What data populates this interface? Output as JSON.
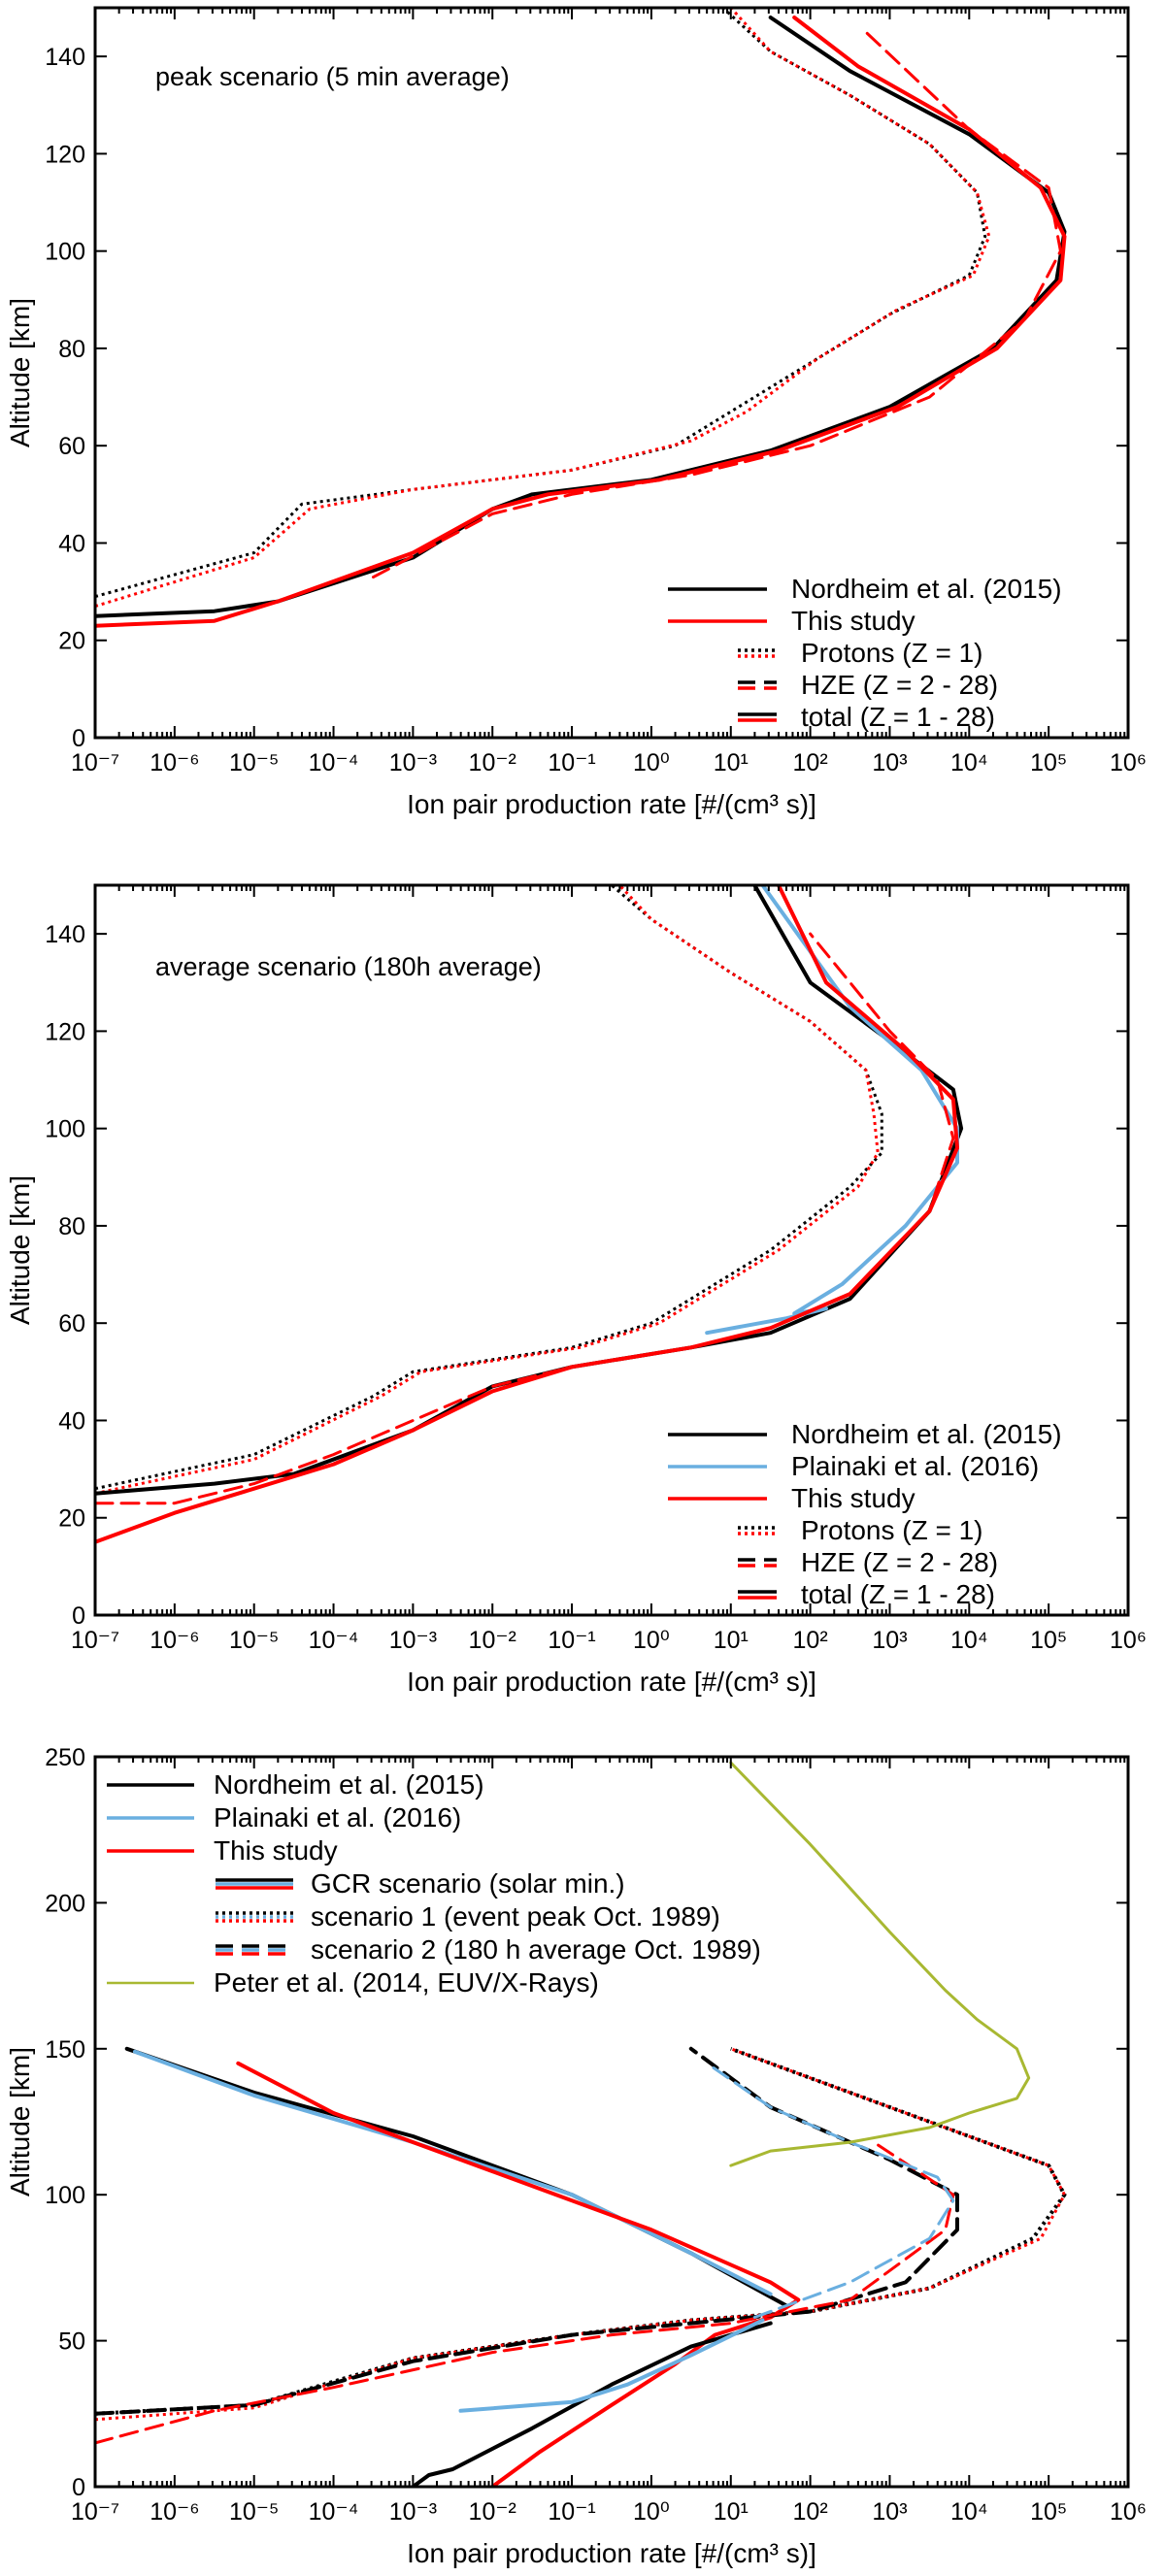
{
  "colors": {
    "nordheim": "#000000",
    "plainaki": "#6aafe0",
    "this_study": "#ff0000",
    "peter": "#a8b832"
  },
  "chart_data": [
    {
      "type": "line",
      "title": "",
      "annotation": "peak scenario (5 min average)",
      "xlabel": "Ion pair production rate [#/(cm³ s)]",
      "ylabel": "Altitude [km]",
      "xscale": "log",
      "xlim": [
        -7,
        6
      ],
      "ylim": [
        0,
        150
      ],
      "xticks": [
        "10⁻⁷",
        "10⁻⁶",
        "10⁻⁵",
        "10⁻⁴",
        "10⁻³",
        "10⁻²",
        "10⁻¹",
        "10⁰",
        "10¹",
        "10²",
        "10³",
        "10⁴",
        "10⁵",
        "10⁶"
      ],
      "yticks": [
        "0",
        "20",
        "40",
        "60",
        "80",
        "100",
        "120",
        "140"
      ],
      "legend_position": "lower-right",
      "legend": [
        {
          "label": "Nordheim et al. (2015)",
          "style": "solid",
          "color": "nordheim"
        },
        {
          "label": "This study",
          "style": "solid",
          "color": "this_study"
        },
        {
          "label": "Protons (Z = 1)",
          "style": "dotted",
          "color": "both"
        },
        {
          "label": "HZE (Z = 2 - 28)",
          "style": "dashed",
          "color": "both"
        },
        {
          "label": "total (Z = 1 - 28)",
          "style": "solid",
          "color": "both"
        }
      ],
      "series": [
        {
          "name": "Nordheim protons",
          "color": "nordheim",
          "style": "dotted",
          "width": 3,
          "log10x": [
            -7,
            -5,
            -4.4,
            -3,
            -1,
            0.3,
            1,
            2,
            3,
            4,
            4.2,
            4.1,
            3.5,
            2.5,
            1.5,
            0.9
          ],
          "y": [
            29,
            38,
            48,
            51,
            55,
            60,
            67,
            77,
            87,
            95,
            103,
            112,
            122,
            132,
            141,
            150
          ]
        },
        {
          "name": "This study protons",
          "color": "this_study",
          "style": "dotted",
          "width": 3,
          "log10x": [
            -7,
            -5,
            -4.3,
            -3,
            -1,
            0.5,
            1.2,
            2.1,
            3.1,
            4.05,
            4.25,
            4.1,
            3.5,
            2.5,
            1.5,
            1.0
          ],
          "y": [
            27,
            37,
            47,
            51,
            55,
            61,
            67,
            78,
            88,
            95,
            103,
            112,
            122,
            132,
            141,
            150
          ]
        },
        {
          "name": "Nordheim total",
          "color": "nordheim",
          "style": "solid",
          "width": 4,
          "log10x": [
            -7,
            -5.5,
            -4.7,
            -3,
            -2,
            -1.5,
            0,
            1.5,
            3,
            4.3,
            5.1,
            5.2,
            5.0,
            4.0,
            2.5,
            1.5
          ],
          "y": [
            25,
            26,
            28,
            37,
            47,
            50,
            53,
            59,
            68,
            80,
            94,
            104,
            112,
            124,
            137,
            148
          ]
        },
        {
          "name": "This study total",
          "color": "this_study",
          "style": "solid",
          "width": 4,
          "log10x": [
            -7,
            -5.5,
            -4.7,
            -3,
            -2,
            -1.3,
            0.1,
            1.6,
            3.1,
            4.35,
            5.15,
            5.2,
            4.9,
            4.0,
            2.6,
            1.8
          ],
          "y": [
            23,
            24,
            28,
            38,
            47,
            50,
            53,
            59,
            68,
            80,
            94,
            103,
            113,
            125,
            138,
            148
          ]
        },
        {
          "name": "HZE",
          "color": "this_study",
          "style": "dashed",
          "width": 3,
          "log10x": [
            -3.5,
            -2,
            -1,
            0.5,
            2,
            3.5,
            4.7,
            5.15,
            5.0,
            4.0,
            2.7
          ],
          "y": [
            33,
            46,
            50,
            54,
            60,
            70,
            86,
            100,
            113,
            125,
            145
          ]
        }
      ]
    },
    {
      "type": "line",
      "title": "",
      "annotation": "average scenario (180h average)",
      "xlabel": "Ion pair production rate [#/(cm³ s)]",
      "ylabel": "Altitude [km]",
      "xscale": "log",
      "xlim": [
        -7,
        6
      ],
      "ylim": [
        0,
        150
      ],
      "xticks": [
        "10⁻⁷",
        "10⁻⁶",
        "10⁻⁵",
        "10⁻⁴",
        "10⁻³",
        "10⁻²",
        "10⁻¹",
        "10⁰",
        "10¹",
        "10²",
        "10³",
        "10⁴",
        "10⁵",
        "10⁶"
      ],
      "yticks": [
        "0",
        "20",
        "40",
        "60",
        "80",
        "100",
        "120",
        "140"
      ],
      "legend_position": "lower-right",
      "legend": [
        {
          "label": "Nordheim et al. (2015)",
          "style": "solid",
          "color": "nordheim"
        },
        {
          "label": "Plainaki et al. (2016)",
          "style": "solid",
          "color": "plainaki"
        },
        {
          "label": "This study",
          "style": "solid",
          "color": "this_study"
        },
        {
          "label": "Protons (Z = 1)",
          "style": "dotted",
          "color": "both"
        },
        {
          "label": "HZE (Z = 2 - 28)",
          "style": "dashed",
          "color": "both"
        },
        {
          "label": "total (Z = 1 - 28)",
          "style": "solid",
          "color": "both"
        }
      ],
      "series": [
        {
          "name": "Nordheim protons",
          "color": "nordheim",
          "style": "dotted",
          "width": 3,
          "log10x": [
            -7,
            -5,
            -3.5,
            -3,
            -1,
            0,
            0.5,
            1.5,
            2.5,
            2.9,
            2.9,
            2.7,
            2.0,
            1.0,
            0.0,
            -0.5
          ],
          "y": [
            26,
            33,
            45,
            50,
            55,
            60,
            65,
            75,
            88,
            95,
            103,
            112,
            122,
            132,
            143,
            150
          ]
        },
        {
          "name": "This study protons",
          "color": "this_study",
          "style": "dotted",
          "width": 3,
          "log10x": [
            -7,
            -5,
            -3.4,
            -2.9,
            -0.9,
            0.1,
            0.6,
            1.6,
            2.6,
            2.85,
            2.8,
            2.7,
            2.0,
            1.0,
            0.0,
            -0.4
          ],
          "y": [
            25,
            32,
            45,
            50,
            55,
            60,
            65,
            75,
            88,
            95,
            103,
            112,
            122,
            132,
            143,
            150
          ]
        },
        {
          "name": "Nordheim total",
          "color": "nordheim",
          "style": "solid",
          "width": 4,
          "log10x": [
            -7,
            -5.5,
            -4.5,
            -3,
            -2,
            -1,
            0.5,
            1.5,
            2.5,
            3.5,
            3.9,
            3.8,
            3.0,
            2.0,
            1.3
          ],
          "y": [
            25,
            27,
            29,
            38,
            47,
            51,
            55,
            58,
            65,
            83,
            100,
            108,
            118,
            130,
            150
          ]
        },
        {
          "name": "Plainaki",
          "color": "plainaki",
          "style": "solid",
          "width": 4,
          "log10x": [
            0.7,
            1.7,
            2.2,
            1.8,
            2.4,
            3.2,
            3.85,
            3.85,
            3.4,
            2.5,
            1.4
          ],
          "y": [
            58,
            61,
            63,
            62,
            68,
            80,
            93,
            100,
            112,
            125,
            150
          ]
        },
        {
          "name": "This study total",
          "color": "this_study",
          "style": "solid",
          "width": 4,
          "log10x": [
            -7,
            -6,
            -5,
            -4,
            -3,
            -2,
            -1,
            0.5,
            1.5,
            2.5,
            3.5,
            3.85,
            3.8,
            3.2,
            2.2,
            1.6
          ],
          "y": [
            15,
            21,
            26,
            31,
            38,
            46,
            51,
            55,
            59,
            66,
            83,
            96,
            106,
            116,
            130,
            150
          ]
        },
        {
          "name": "HZE",
          "color": "this_study",
          "style": "dashed",
          "width": 3,
          "log10x": [
            -7,
            -6,
            -5,
            -4,
            -3,
            -2,
            -1,
            0.5,
            1.5,
            2.5,
            3.5,
            3.8,
            3.6,
            3.0,
            2.0
          ],
          "y": [
            23,
            23,
            27,
            33,
            40,
            47,
            51,
            55,
            59,
            66,
            83,
            98,
            110,
            120,
            140
          ]
        }
      ]
    },
    {
      "type": "line",
      "title": "",
      "xlabel": "Ion pair production rate [#/(cm³ s)]",
      "ylabel": "Altitude [km]",
      "xscale": "log",
      "xlim": [
        -7,
        6
      ],
      "ylim": [
        0,
        250
      ],
      "xticks": [
        "10⁻⁷",
        "10⁻⁶",
        "10⁻⁵",
        "10⁻⁴",
        "10⁻³",
        "10⁻²",
        "10⁻¹",
        "10⁰",
        "10¹",
        "10²",
        "10³",
        "10⁴",
        "10⁵",
        "10⁶"
      ],
      "yticks": [
        "0",
        "50",
        "100",
        "150",
        "200",
        "250"
      ],
      "legend_position": "top-left",
      "legend": [
        {
          "label": "Nordheim et al. (2015)",
          "style": "solid",
          "color": "nordheim"
        },
        {
          "label": "Plainaki et al. (2016)",
          "style": "solid",
          "color": "plainaki"
        },
        {
          "label": "This study",
          "style": "solid",
          "color": "this_study"
        },
        {
          "label": "GCR scenario (solar min.)",
          "style": "solid",
          "color": "triple"
        },
        {
          "label": "scenario 1 (event peak Oct. 1989)",
          "style": "dotted",
          "color": "triple"
        },
        {
          "label": "scenario 2 (180 h average Oct. 1989)",
          "style": "dashed",
          "color": "triple"
        },
        {
          "label": "Peter et al. (2014, EUV/X-Rays)",
          "style": "solid",
          "color": "peter"
        }
      ],
      "series": [
        {
          "name": "GCR Nordheim",
          "color": "nordheim",
          "style": "solid",
          "width": 4,
          "log10x": [
            -6.6,
            -5,
            -3,
            -1,
            0.5,
            1.5,
            1.7
          ],
          "y": [
            150,
            135,
            120,
            100,
            80,
            65,
            62
          ]
        },
        {
          "name": "GCR Plainaki",
          "color": "plainaki",
          "style": "solid",
          "width": 4,
          "log10x": [
            -6.5,
            -5,
            -3,
            -1,
            0.5,
            1.5
          ],
          "y": [
            149,
            134,
            118,
            100,
            80,
            66
          ]
        },
        {
          "name": "GCR This study",
          "color": "this_study",
          "style": "solid",
          "width": 4,
          "log10x": [
            -5.2,
            -4,
            -2,
            0,
            1.5,
            1.85,
            1.5,
            0.8,
            0.3,
            -0.5,
            -1.4,
            -2
          ],
          "y": [
            145,
            128,
            108,
            88,
            70,
            64,
            58,
            52,
            42,
            28,
            12,
            0
          ]
        },
        {
          "name": "GCR Nordheim low",
          "color": "nordheim",
          "style": "solid",
          "width": 4,
          "log10x": [
            1.5,
            0.5,
            -0.5,
            -1.5,
            -2.5,
            -2.8,
            -3
          ],
          "y": [
            56,
            48,
            35,
            20,
            6,
            4,
            0
          ]
        },
        {
          "name": "GCR Plainaki low",
          "color": "plainaki",
          "style": "solid",
          "width": 4,
          "log10x": [
            1.4,
            0.5,
            -0.3,
            -1,
            -2.4
          ],
          "y": [
            57,
            45,
            35,
            29,
            26
          ]
        },
        {
          "name": "Scenario 1 dotted black",
          "color": "nordheim",
          "style": "dotted",
          "width": 4,
          "log10x": [
            -7,
            -5,
            -3,
            -1,
            0.5,
            2,
            3.5,
            4.8,
            5.2,
            5.0,
            3.5,
            2.0,
            1.0
          ],
          "y": [
            25,
            28,
            44,
            52,
            57,
            60,
            68,
            85,
            100,
            110,
            125,
            140,
            150
          ]
        },
        {
          "name": "Scenario 1 dotted red",
          "color": "this_study",
          "style": "dotted",
          "width": 3,
          "log10x": [
            -7,
            -5,
            -3,
            -1,
            0.5,
            2,
            3.5,
            4.9,
            5.2,
            5.0,
            3.5,
            2.0,
            1.0
          ],
          "y": [
            23,
            27,
            44,
            52,
            57,
            60,
            68,
            85,
            100,
            110,
            125,
            140,
            150
          ]
        },
        {
          "name": "Scenario 2 dashed black",
          "color": "nordheim",
          "style": "dashed",
          "width": 4,
          "log10x": [
            -7,
            -5,
            -3,
            -1,
            0.5,
            2,
            3.2,
            3.85,
            3.85,
            3.0,
            1.5,
            0.5
          ],
          "y": [
            25,
            28,
            43,
            52,
            56,
            60,
            70,
            88,
            100,
            112,
            130,
            150
          ]
        },
        {
          "name": "Scenario 2 dashed red",
          "color": "this_study",
          "style": "dashed",
          "width": 3,
          "log10x": [
            -7,
            -5.5,
            -4,
            -2,
            -0.5,
            1,
            2.5,
            3.7,
            3.8,
            2.8
          ],
          "y": [
            15,
            26,
            34,
            46,
            52,
            56,
            64,
            88,
            100,
            118
          ]
        },
        {
          "name": "Scenario 2 dashed blue",
          "color": "plainaki",
          "style": "dashed",
          "width": 3,
          "log10x": [
            1.3,
            2.5,
            3.5,
            3.8,
            3.6,
            2.5,
            1.5,
            0.7
          ],
          "y": [
            58,
            70,
            85,
            98,
            106,
            118,
            130,
            145
          ]
        },
        {
          "name": "Peter EUV/X-Rays",
          "color": "peter",
          "style": "solid",
          "width": 3,
          "log10x": [
            1.0,
            2.0,
            3.0,
            3.7,
            4.1,
            4.6,
            4.75,
            4.6,
            4.0,
            3.5,
            2.5,
            1.5,
            1.0
          ],
          "y": [
            248,
            220,
            190,
            170,
            160,
            150,
            140,
            133,
            128,
            123,
            118,
            115,
            110
          ]
        }
      ]
    }
  ]
}
